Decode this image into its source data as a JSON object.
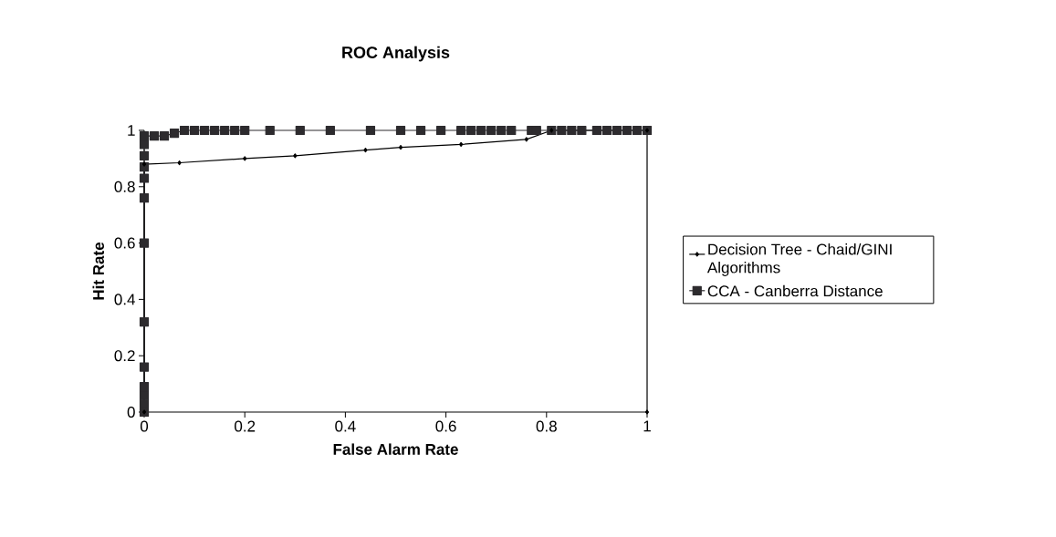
{
  "chart_data": {
    "type": "line",
    "title": "ROC Analysis",
    "xlabel": "False Alarm Rate",
    "ylabel": "Hit Rate",
    "xlim": [
      0,
      1
    ],
    "ylim": [
      0,
      1
    ],
    "xticks": [
      0,
      0.2,
      0.4,
      0.6,
      0.8,
      1
    ],
    "yticks": [
      0,
      0.2,
      0.4,
      0.6,
      0.8,
      1
    ],
    "grid": false,
    "legend": "right",
    "series": [
      {
        "name": "Decision Tree - Chaid/GINI Algorithms",
        "color": "#000000",
        "marker": "diamond",
        "x": [
          0,
          0,
          0.07,
          0.2,
          0.3,
          0.44,
          0.51,
          0.63,
          0.76,
          0.81,
          1,
          1
        ],
        "values": [
          0,
          0.88,
          0.885,
          0.9,
          0.91,
          0.93,
          0.94,
          0.95,
          0.968,
          1,
          1,
          0
        ]
      },
      {
        "name": "CCA - Canberra Distance",
        "color": "#2d2b2e",
        "marker": "square",
        "x": [
          0,
          0,
          0,
          0,
          0,
          0,
          0,
          0,
          0,
          0,
          0,
          0,
          0,
          0.02,
          0.04,
          0.06,
          0.08,
          0.1,
          0.12,
          0.14,
          0.16,
          0.18,
          0.2,
          0.25,
          0.31,
          0.37,
          0.45,
          0.51,
          0.55,
          0.59,
          0.63,
          0.65,
          0.67,
          0.69,
          0.71,
          0.73,
          0.77,
          0.78,
          0.81,
          0.83,
          0.85,
          0.87,
          0.9,
          0.92,
          0.94,
          0.96,
          0.98,
          1
        ],
        "values": [
          0,
          0.03,
          0.06,
          0.09,
          0.16,
          0.32,
          0.6,
          0.76,
          0.83,
          0.87,
          0.91,
          0.95,
          0.98,
          0.98,
          0.98,
          0.99,
          1,
          1,
          1,
          1,
          1,
          1,
          1,
          1,
          1,
          1,
          1,
          1,
          1,
          1,
          1,
          1,
          1,
          1,
          1,
          1,
          1,
          1,
          1,
          1,
          1,
          1,
          1,
          1,
          1,
          1,
          1,
          1
        ]
      }
    ]
  }
}
